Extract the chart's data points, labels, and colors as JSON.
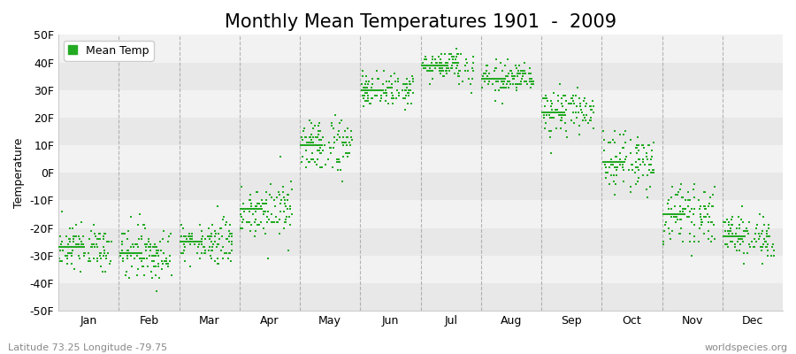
{
  "title": "Monthly Mean Temperatures 1901  -  2009",
  "ylabel": "Temperature",
  "xlabel_months": [
    "Jan",
    "Feb",
    "Mar",
    "Apr",
    "May",
    "Jun",
    "Jul",
    "Aug",
    "Sep",
    "Oct",
    "Nov",
    "Dec"
  ],
  "ylim": [
    -50,
    50
  ],
  "yticks": [
    -50,
    -40,
    -30,
    -20,
    -10,
    0,
    10,
    20,
    30,
    40,
    50
  ],
  "ytick_labels": [
    "-50F",
    "-40F",
    "-30F",
    "-20F",
    "-10F",
    "0F",
    "10F",
    "20F",
    "30F",
    "40F",
    "50F"
  ],
  "dot_color": "#22aa22",
  "bg_color": "#ffffff",
  "band_colors": [
    "#e8e8e8",
    "#f2f2f2"
  ],
  "legend_label": "Mean Temp",
  "subtitle_left": "Latitude 73.25 Longitude -79.75",
  "subtitle_right": "worldspecies.org",
  "n_years": 109,
  "monthly_means": [
    -27,
    -29,
    -25,
    -13,
    10,
    30,
    39,
    34,
    22,
    4,
    -15,
    -23
  ],
  "monthly_stds": [
    4,
    5,
    4,
    5,
    5,
    3,
    3,
    3,
    4,
    5,
    5,
    4
  ],
  "modal_values": [
    -27,
    -29,
    -25,
    -13,
    10,
    30,
    39,
    34,
    22,
    4,
    -15,
    -23
  ],
  "title_fontsize": 15,
  "label_fontsize": 9,
  "tick_fontsize": 9,
  "marker_size": 4,
  "dashed_color": "#999999",
  "spine_color": "#cccccc"
}
